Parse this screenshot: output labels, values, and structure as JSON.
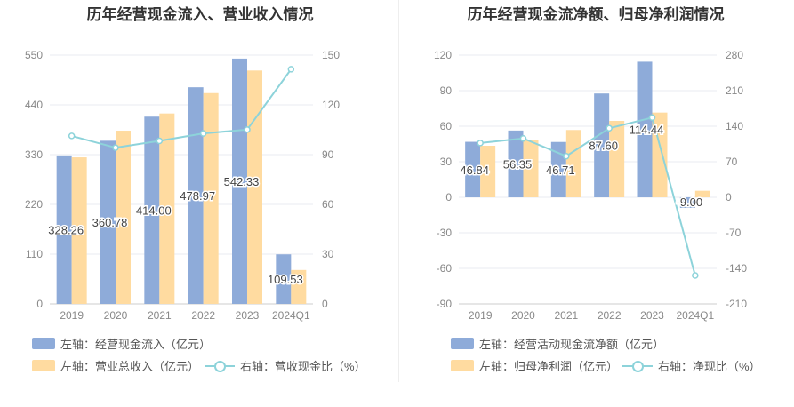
{
  "colors": {
    "bar1": "#8eabd9",
    "bar2": "#ffdba0",
    "line": "#8dd3da",
    "grid": "#e8ebf2",
    "axis_text": "#888888",
    "label_text": "#444444"
  },
  "chart_data": [
    {
      "type": "bar",
      "title": "历年经营现金流入、营业收入情况",
      "categories": [
        "2019",
        "2020",
        "2021",
        "2022",
        "2023",
        "2024Q1"
      ],
      "series": [
        {
          "name": "左轴：经营现金流入（亿元）",
          "axis": "left",
          "values": [
            328.26,
            360.78,
            414.0,
            478.97,
            542.33,
            109.53
          ],
          "labels": [
            "328.26",
            "360.78",
            "414.00",
            "478.97",
            "542.33",
            "109.53"
          ]
        },
        {
          "name": "左轴：营业总收入（亿元）",
          "axis": "left",
          "values": [
            324,
            383,
            421,
            466,
            516,
            75
          ]
        },
        {
          "name": "右轴：营收现金比（%）",
          "axis": "right",
          "type": "line",
          "values": [
            101.3,
            94.2,
            98.3,
            102.8,
            105.1,
            141.5
          ]
        }
      ],
      "left_axis": {
        "ticks": [
          "0",
          "110",
          "220",
          "330",
          "440",
          "550"
        ],
        "min": 0,
        "max": 550
      },
      "right_axis": {
        "ticks": [
          "0",
          "30",
          "60",
          "90",
          "120",
          "150"
        ],
        "min": 0,
        "max": 150
      },
      "grid": true,
      "legend_position": "bottom"
    },
    {
      "type": "bar",
      "title": "历年经营现金流净额、归母净利润情况",
      "categories": [
        "2019",
        "2020",
        "2021",
        "2022",
        "2023",
        "2024Q1"
      ],
      "series": [
        {
          "name": "左轴：经营活动现金流净额（亿元）",
          "axis": "left",
          "values": [
            46.84,
            56.35,
            46.71,
            87.6,
            114.44,
            -9.0
          ],
          "labels": [
            "46.84",
            "56.35",
            "46.71",
            "87.60",
            "114.44",
            "-9.00"
          ]
        },
        {
          "name": "左轴：归母净利润（亿元）",
          "axis": "left",
          "values": [
            43.5,
            48.5,
            56.8,
            64.5,
            71.5,
            5.5
          ]
        },
        {
          "name": "右轴：净现比（%）",
          "axis": "right",
          "type": "line",
          "values": [
            107,
            116,
            81,
            136,
            157,
            -154
          ]
        }
      ],
      "left_axis": {
        "ticks": [
          "-90",
          "-60",
          "-30",
          "0",
          "30",
          "60",
          "90",
          "120"
        ],
        "min": -90,
        "max": 120
      },
      "right_axis": {
        "ticks": [
          "-210",
          "-140",
          "-70",
          "0",
          "70",
          "140",
          "210",
          "280"
        ],
        "min": -210,
        "max": 280
      },
      "grid": true,
      "legend_position": "bottom"
    }
  ]
}
